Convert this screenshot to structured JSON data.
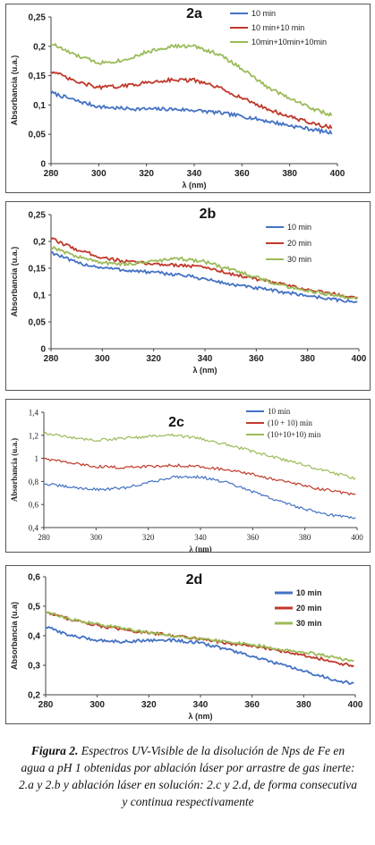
{
  "chart_data": [
    {
      "id": "2a",
      "type": "line",
      "title": "2a",
      "xlabel": "λ (nm)",
      "ylabel": "Absorbancia (u.a.)",
      "xlim": [
        280,
        400
      ],
      "ylim": [
        0,
        0.25
      ],
      "xticks": [
        280,
        300,
        320,
        340,
        360,
        380,
        400
      ],
      "yticks": [
        0,
        0.05,
        0.1,
        0.15,
        0.2,
        0.25
      ],
      "ytick_labels": [
        "0",
        "0,05",
        "0,1",
        "0,15",
        "0,2",
        "0,25"
      ],
      "legend_position": "top-right",
      "grid": false,
      "series": [
        {
          "name": "10 min",
          "color": "#4472c4",
          "x": [
            280,
            290,
            300,
            310,
            320,
            330,
            340,
            350,
            360,
            370,
            380,
            390,
            398
          ],
          "y": [
            0.121,
            0.108,
            0.097,
            0.094,
            0.093,
            0.093,
            0.091,
            0.087,
            0.081,
            0.073,
            0.065,
            0.058,
            0.052
          ]
        },
        {
          "name": "10 min+10 min",
          "color": "#c0392b",
          "x": [
            280,
            290,
            300,
            310,
            320,
            330,
            340,
            350,
            360,
            370,
            380,
            390,
            398
          ],
          "y": [
            0.158,
            0.14,
            0.13,
            0.132,
            0.138,
            0.143,
            0.142,
            0.13,
            0.112,
            0.094,
            0.08,
            0.068,
            0.061
          ]
        },
        {
          "name": "10min+10min+10min",
          "color": "#9bbb59",
          "x": [
            280,
            290,
            300,
            310,
            320,
            330,
            340,
            350,
            360,
            370,
            380,
            390,
            398
          ],
          "y": [
            0.205,
            0.185,
            0.172,
            0.176,
            0.19,
            0.2,
            0.2,
            0.187,
            0.162,
            0.132,
            0.112,
            0.093,
            0.082
          ]
        }
      ]
    },
    {
      "id": "2b",
      "type": "line",
      "title": "2b",
      "xlabel": "λ (nm)",
      "ylabel": "Absorbancia (u.a.)",
      "xlim": [
        280,
        400
      ],
      "ylim": [
        0,
        0.25
      ],
      "xticks": [
        280,
        300,
        320,
        340,
        360,
        380,
        400
      ],
      "yticks": [
        0,
        0.05,
        0.1,
        0.15,
        0.2,
        0.25
      ],
      "ytick_labels": [
        "0",
        "0,05",
        "0,1",
        "0,15",
        "0,2",
        "0,25"
      ],
      "legend_position": "top-right",
      "grid": false,
      "series": [
        {
          "name": "10 min",
          "color": "#4472c4",
          "x": [
            280,
            290,
            300,
            310,
            320,
            330,
            340,
            350,
            360,
            370,
            380,
            390,
            400
          ],
          "y": [
            0.18,
            0.16,
            0.151,
            0.146,
            0.142,
            0.138,
            0.13,
            0.12,
            0.113,
            0.106,
            0.099,
            0.092,
            0.086
          ]
        },
        {
          "name": "20 min",
          "color": "#c0392b",
          "x": [
            280,
            290,
            300,
            310,
            320,
            330,
            340,
            350,
            360,
            370,
            380,
            390,
            400
          ],
          "y": [
            0.205,
            0.185,
            0.17,
            0.162,
            0.158,
            0.156,
            0.152,
            0.14,
            0.13,
            0.12,
            0.11,
            0.102,
            0.095
          ]
        },
        {
          "name": "30 min",
          "color": "#9bbb59",
          "x": [
            280,
            290,
            300,
            310,
            320,
            330,
            340,
            350,
            360,
            370,
            380,
            390,
            400
          ],
          "y": [
            0.19,
            0.172,
            0.16,
            0.158,
            0.163,
            0.168,
            0.162,
            0.148,
            0.133,
            0.118,
            0.108,
            0.1,
            0.092
          ]
        }
      ]
    },
    {
      "id": "2c",
      "type": "line",
      "title": "2c",
      "xlabel": "λ (nm)",
      "ylabel": "Absorbancia (u.a.)",
      "xlim": [
        280,
        400
      ],
      "ylim": [
        0.4,
        1.4
      ],
      "xticks": [
        280,
        300,
        320,
        340,
        360,
        380,
        400
      ],
      "yticks": [
        0.4,
        0.6,
        0.8,
        1,
        1.2,
        1.4
      ],
      "ytick_labels": [
        "0,4",
        "0,6",
        "0,8",
        "1",
        "1,2",
        "1,4"
      ],
      "legend_position": "top-right",
      "grid": false,
      "series": [
        {
          "name": "10 min",
          "color": "#4472c4",
          "x": [
            280,
            290,
            300,
            310,
            320,
            330,
            340,
            350,
            360,
            370,
            380,
            390,
            400
          ],
          "y": [
            0.78,
            0.75,
            0.73,
            0.74,
            0.79,
            0.84,
            0.84,
            0.79,
            0.71,
            0.63,
            0.56,
            0.51,
            0.48
          ]
        },
        {
          "name": "(10 + 10) min",
          "color": "#c0392b",
          "x": [
            280,
            290,
            300,
            310,
            320,
            330,
            340,
            350,
            360,
            370,
            380,
            390,
            400
          ],
          "y": [
            1.0,
            0.96,
            0.93,
            0.92,
            0.93,
            0.94,
            0.93,
            0.9,
            0.86,
            0.81,
            0.76,
            0.72,
            0.68
          ]
        },
        {
          "name": "(10+10+10) min",
          "color": "#9bbb59",
          "x": [
            280,
            290,
            300,
            310,
            320,
            330,
            340,
            350,
            360,
            370,
            380,
            390,
            400
          ],
          "y": [
            1.22,
            1.18,
            1.16,
            1.17,
            1.19,
            1.2,
            1.17,
            1.12,
            1.06,
            1.0,
            0.94,
            0.88,
            0.82
          ]
        }
      ]
    },
    {
      "id": "2d",
      "type": "line",
      "title": "2d",
      "xlabel": "λ (nm)",
      "ylabel": "Absorbancia (u.a)",
      "xlim": [
        280,
        400
      ],
      "ylim": [
        0.2,
        0.6
      ],
      "xticks": [
        280,
        300,
        320,
        340,
        360,
        380,
        400
      ],
      "yticks": [
        0.2,
        0.3,
        0.4,
        0.5,
        0.6
      ],
      "ytick_labels": [
        "0,2",
        "0,3",
        "0,4",
        "0,5",
        "0,6"
      ],
      "legend_position": "top-right",
      "grid": false,
      "series": [
        {
          "name": "10 min",
          "color": "#4472c4",
          "x": [
            280,
            290,
            300,
            310,
            320,
            330,
            340,
            350,
            360,
            370,
            380,
            390,
            400
          ],
          "y": [
            0.43,
            0.4,
            0.385,
            0.38,
            0.385,
            0.385,
            0.375,
            0.355,
            0.33,
            0.305,
            0.28,
            0.255,
            0.235
          ]
        },
        {
          "name": "20 min",
          "color": "#c0392b",
          "x": [
            280,
            290,
            300,
            310,
            320,
            330,
            340,
            350,
            360,
            370,
            380,
            390,
            400
          ],
          "y": [
            0.48,
            0.455,
            0.435,
            0.42,
            0.41,
            0.4,
            0.39,
            0.375,
            0.365,
            0.35,
            0.335,
            0.315,
            0.295
          ]
        },
        {
          "name": "30 min",
          "color": "#9bbb59",
          "x": [
            280,
            290,
            300,
            310,
            320,
            330,
            340,
            350,
            360,
            370,
            380,
            390,
            400
          ],
          "y": [
            0.48,
            0.455,
            0.44,
            0.425,
            0.41,
            0.4,
            0.39,
            0.38,
            0.37,
            0.355,
            0.345,
            0.33,
            0.31
          ]
        }
      ]
    }
  ],
  "caption": {
    "label": "Figura 2.",
    "text": " Espectros UV-Visible de la disolución de Nps de Fe en agua a pH 1 obtenidas por ablación láser por arrastre de gas inerte: 2.a y 2.b y ablación láser en solución: 2.c y 2.d, de forma consecutiva y continua respectivamente"
  }
}
